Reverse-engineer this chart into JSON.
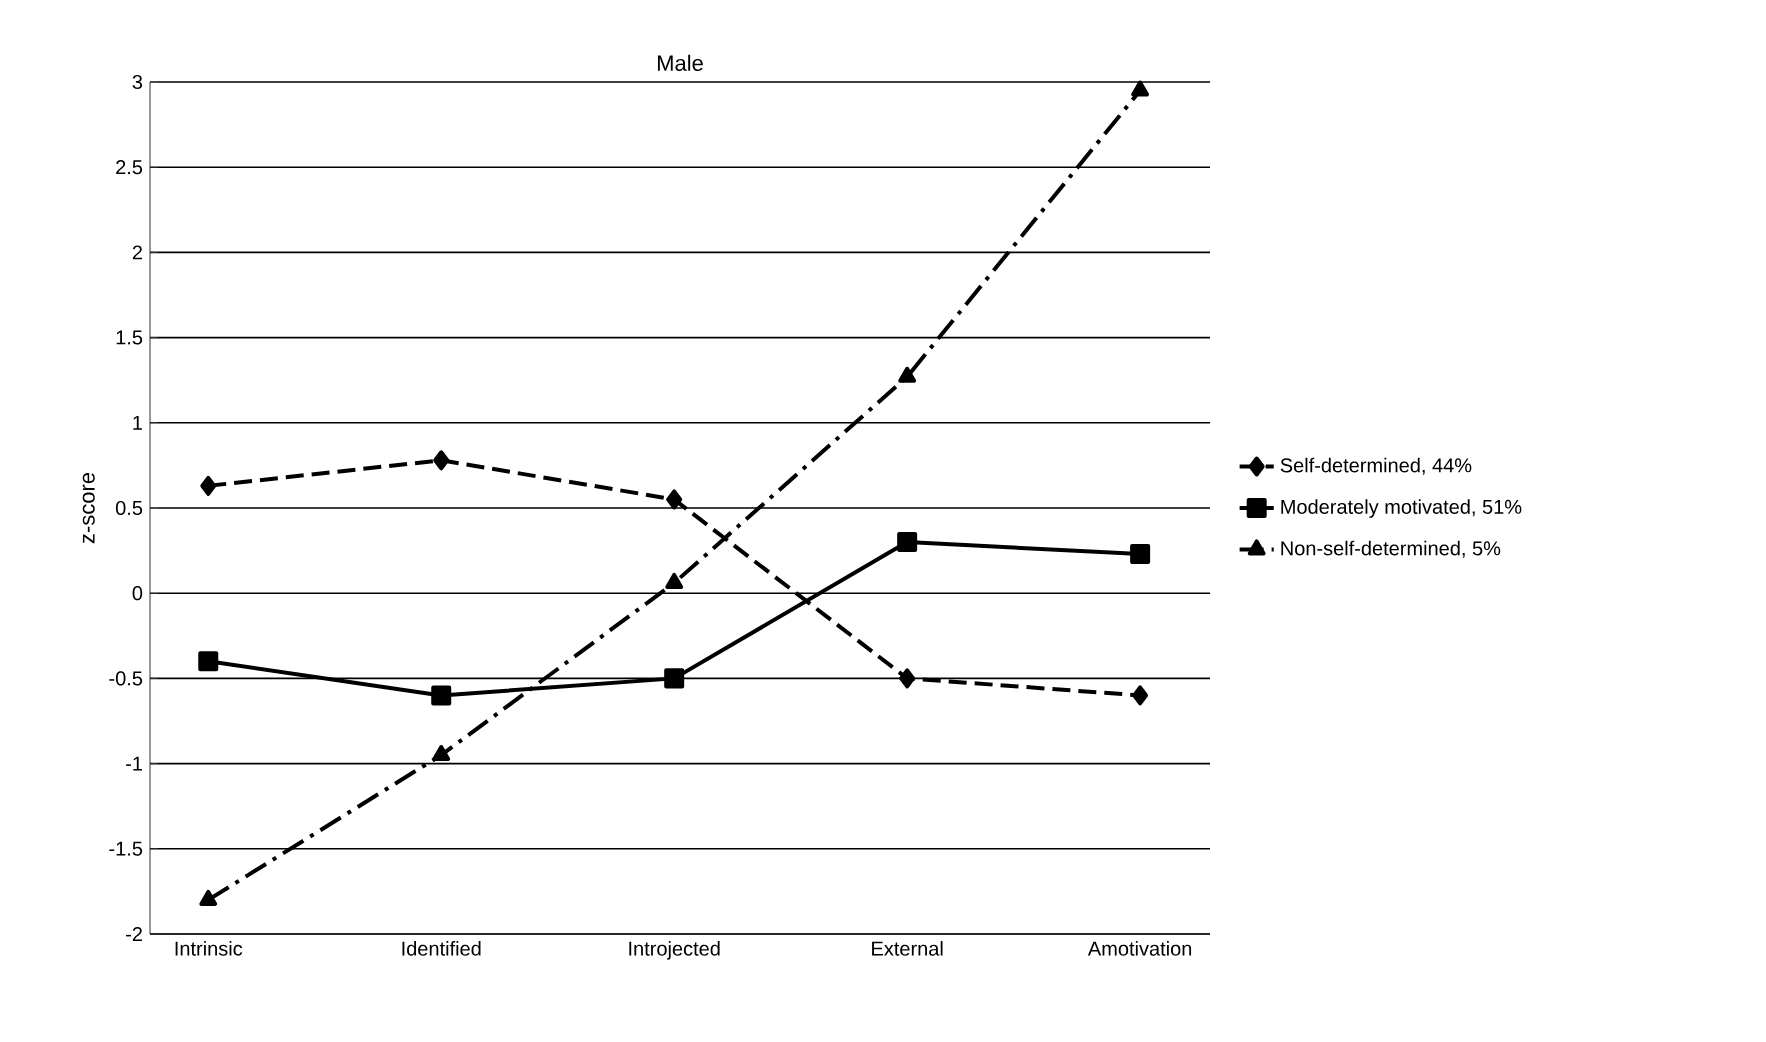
{
  "chart_data": {
    "type": "line",
    "title": "Male",
    "ylabel": "z-score",
    "categories": [
      "Intrinsic",
      "Identified",
      "Introjected",
      "External",
      "Amotivation"
    ],
    "series": [
      {
        "name": "Self-determined, 44%",
        "color": "#000000",
        "marker": "diamond",
        "line_style": "dashed",
        "values": [
          0.63,
          0.78,
          0.55,
          -0.5,
          -0.6
        ]
      },
      {
        "name": "Moderately motivated, 51%",
        "color": "#000000",
        "marker": "square",
        "line_style": "solid",
        "values": [
          -0.4,
          -0.6,
          -0.5,
          0.3,
          0.23
        ]
      },
      {
        "name": "Non-self-determined, 5%",
        "color": "#000000",
        "marker": "triangle",
        "line_style": "dashdotted",
        "values": [
          -1.8,
          -0.95,
          0.06,
          1.27,
          2.95
        ]
      }
    ],
    "ylim": [
      -2,
      3
    ],
    "yticks": [
      -2,
      -1.5,
      -1,
      -0.5,
      0,
      0.5,
      1,
      1.5,
      2,
      2.5,
      3
    ],
    "grid": "y",
    "legend": "right"
  }
}
